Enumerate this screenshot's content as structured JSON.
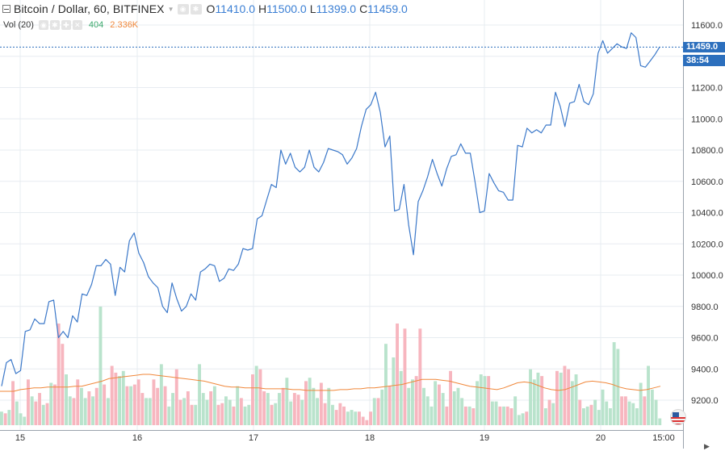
{
  "legend": {
    "symbol_title": "Bitcoin / Dollar, 60, BITFINEX",
    "open_key": "O",
    "open_val": "11410.0",
    "high_key": "H",
    "high_val": "11500.0",
    "low_key": "L",
    "low_val": "11399.0",
    "close_key": "C",
    "close_val": "11459.0"
  },
  "volume_legend": {
    "label": "Vol (20)",
    "value": "404",
    "ma_value": "2.336K"
  },
  "price_axis": {
    "ticks": [
      "11600.0",
      "11400.0",
      "11200.0",
      "11000.0",
      "10800.0",
      "10600.0",
      "10400.0",
      "10200.0",
      "10000.0",
      "9800.0",
      "9600.0",
      "9400.0",
      "9200.0"
    ],
    "current_price_label": "11459.0",
    "countdown_label": "38:54"
  },
  "time_axis": {
    "ticks": [
      "15",
      "16",
      "17",
      "18",
      "19",
      "20",
      "15:00"
    ]
  },
  "colors": {
    "line": "#3b78c9",
    "vol_up": "#b9e3cc",
    "vol_down": "#f7b6bf",
    "vol_ma": "#f0873a",
    "grid": "#e7ecf1",
    "current_line": "#2c6fbd"
  },
  "icons": {
    "flag": "us-flag-icon",
    "scroll": "chevron-right-icon"
  },
  "chart_data": {
    "type": "line",
    "symbol": "Bitcoin / Dollar",
    "interval": "60",
    "exchange": "BITFINEX",
    "x_days": [
      "15",
      "16",
      "17",
      "18",
      "19",
      "20"
    ],
    "ylim": [
      9050,
      11700
    ],
    "grid": true,
    "price_series": {
      "values": [
        9290,
        9440,
        9460,
        9370,
        9390,
        9640,
        9650,
        9720,
        9690,
        9690,
        9830,
        9840,
        9600,
        9640,
        9600,
        9740,
        9700,
        9880,
        9870,
        9940,
        10060,
        10060,
        10100,
        10070,
        9870,
        10050,
        10020,
        10220,
        10270,
        10140,
        10080,
        9990,
        9950,
        9920,
        9800,
        9760,
        9950,
        9850,
        9770,
        9800,
        9880,
        9840,
        10020,
        10040,
        10070,
        10060,
        9960,
        9980,
        10040,
        10030,
        10070,
        10170,
        10160,
        10170,
        10360,
        10380,
        10480,
        10580,
        10560,
        10800,
        10710,
        10780,
        10690,
        10660,
        10690,
        10800,
        10690,
        10660,
        10720,
        10810,
        10800,
        10790,
        10770,
        10710,
        10750,
        10810,
        10950,
        11060,
        11090,
        11170,
        11040,
        10820,
        10890,
        10410,
        10420,
        10580,
        10320,
        10130,
        10470,
        10540,
        10630,
        10740,
        10650,
        10570,
        10680,
        10760,
        10770,
        10840,
        10780,
        10780,
        10600,
        10400,
        10410,
        10650,
        10590,
        10540,
        10530,
        10480,
        10480,
        10830,
        10820,
        10940,
        10910,
        10930,
        10910,
        10960,
        10960,
        11170,
        11080,
        10950,
        11100,
        11110,
        11220,
        11110,
        11090,
        11160,
        11420,
        11500,
        11420,
        11450,
        11480,
        11460,
        11450,
        11550,
        11520,
        11340,
        11330,
        11370,
        11410,
        11459
      ]
    },
    "volume_series": {
      "values": [
        80,
        70,
        90,
        260,
        140,
        70,
        50,
        270,
        170,
        140,
        190,
        120,
        130,
        250,
        240,
        600,
        480,
        300,
        170,
        160,
        270,
        220,
        160,
        200,
        170,
        220,
        700,
        240,
        160,
        350,
        310,
        290,
        320,
        230,
        230,
        240,
        270,
        190,
        160,
        160,
        270,
        220,
        360,
        230,
        110,
        190,
        330,
        150,
        160,
        200,
        120,
        120,
        360,
        190,
        150,
        200,
        230,
        120,
        130,
        170,
        150,
        110,
        230,
        160,
        110,
        120,
        300,
        350,
        330,
        200,
        190,
        120,
        130,
        190,
        220,
        280,
        140,
        190,
        180,
        150,
        260,
        280,
        220,
        160,
        250,
        130,
        220,
        120,
        90,
        130,
        110,
        80,
        90,
        80,
        80,
        50,
        30,
        80,
        160,
        160,
        210,
        480,
        230,
        400,
        600,
        320,
        570,
        220,
        270,
        290,
        570,
        220,
        170,
        110,
        260,
        240,
        190,
        110,
        320,
        200,
        220,
        160,
        110,
        110,
        100,
        260,
        300,
        290,
        290,
        140,
        140,
        110,
        110,
        110,
        100,
        170,
        60,
        70,
        80,
        330,
        270,
        310,
        290,
        100,
        150,
        130,
        320,
        310,
        350,
        330,
        260,
        300,
        150,
        100,
        110,
        120,
        150,
        90,
        210,
        140,
        100,
        490,
        450,
        170,
        170,
        140,
        130,
        100,
        250,
        170,
        350,
        210,
        150,
        40
      ],
      "colors": [
        "u",
        "d",
        "u",
        "d",
        "u",
        "u",
        "u",
        "d",
        "u",
        "d",
        "d",
        "u",
        "d",
        "u",
        "d",
        "d",
        "d",
        "u",
        "u",
        "d",
        "d",
        "u",
        "u",
        "d",
        "u",
        "d",
        "u",
        "d",
        "u",
        "d",
        "d",
        "u",
        "u",
        "d",
        "u",
        "d",
        "d",
        "d",
        "u",
        "u",
        "d",
        "d",
        "u",
        "d",
        "u",
        "u",
        "d",
        "d",
        "u",
        "d",
        "d",
        "u",
        "u",
        "u",
        "u",
        "d",
        "u",
        "d",
        "d",
        "u",
        "u",
        "d",
        "u",
        "d",
        "u",
        "u",
        "d",
        "u",
        "d",
        "d",
        "u",
        "d",
        "u",
        "u",
        "d",
        "u",
        "u",
        "d",
        "d",
        "u",
        "d",
        "u",
        "u",
        "u",
        "d",
        "d",
        "u",
        "u",
        "d",
        "d",
        "d",
        "u",
        "u",
        "u",
        "d",
        "d",
        "d",
        "d",
        "u",
        "d",
        "u",
        "u",
        "d",
        "u",
        "d",
        "u",
        "d",
        "u",
        "u",
        "d",
        "d",
        "u",
        "u",
        "u",
        "u",
        "d",
        "u",
        "d",
        "d",
        "u",
        "u",
        "u",
        "d",
        "u",
        "d",
        "u",
        "u",
        "u",
        "d",
        "u",
        "u",
        "d",
        "u",
        "d",
        "d",
        "u",
        "u",
        "u",
        "d",
        "u",
        "u",
        "u",
        "d",
        "u",
        "d",
        "u",
        "d",
        "u",
        "d",
        "d",
        "u",
        "u",
        "d",
        "u",
        "u",
        "d",
        "u",
        "u",
        "u",
        "u",
        "u",
        "u",
        "u",
        "d",
        "d",
        "u",
        "u",
        "u",
        "u",
        "d",
        "u",
        "u",
        "u",
        "u"
      ],
      "ma_values": [
        200,
        200,
        200,
        210,
        215,
        220,
        220,
        225,
        225,
        225,
        225,
        230,
        230,
        240,
        250,
        260,
        275,
        280,
        285,
        290,
        295,
        300,
        300,
        295,
        290,
        285,
        280,
        275,
        270,
        265,
        260,
        250,
        240,
        230,
        225,
        225,
        220,
        220,
        220,
        215,
        215,
        215,
        215,
        210,
        210,
        205,
        205,
        205,
        205,
        205,
        210,
        210,
        215,
        215,
        220,
        220,
        225,
        230,
        235,
        240,
        250,
        260,
        270,
        270,
        270,
        265,
        260,
        250,
        240,
        230,
        225,
        220,
        215,
        210,
        220,
        235,
        250,
        255,
        250,
        235,
        220,
        210,
        205,
        210,
        225,
        240,
        255,
        260,
        255,
        250,
        240,
        225,
        215,
        210,
        205,
        210,
        220,
        230
      ]
    }
  }
}
